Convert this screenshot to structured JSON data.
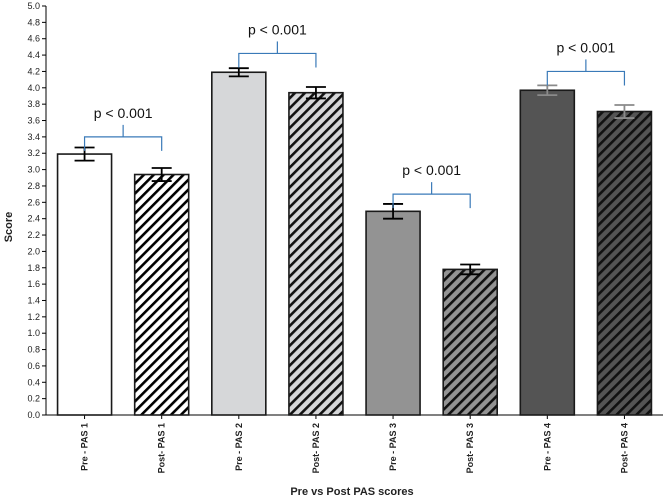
{
  "chart_data": {
    "type": "bar",
    "title": "",
    "xlabel": "Pre vs Post PAS scores",
    "ylabel": "Score",
    "ylim": [
      0,
      5.0
    ],
    "ytick_step": 0.2,
    "yticks": [
      "0.0",
      "0.2",
      "0.4",
      "0.6",
      "0.8",
      "1.0",
      "1.2",
      "1.4",
      "1.6",
      "1.8",
      "2.0",
      "2.2",
      "2.4",
      "2.6",
      "2.8",
      "3.0",
      "3.2",
      "3.4",
      "3.6",
      "3.8",
      "4.0",
      "4.2",
      "4.4",
      "4.6",
      "4.8",
      "5.0"
    ],
    "categories": [
      "Pre - PAS 1",
      "Post- PAS 1",
      "Pre - PAS 2",
      "Post- PAS 2",
      "Pre - PAS 3",
      "Post- PAS 3",
      "Pre - PAS 4",
      "Post- PAS 4"
    ],
    "values": [
      3.19,
      2.94,
      4.19,
      3.94,
      2.49,
      1.78,
      3.97,
      3.71
    ],
    "error": [
      0.08,
      0.08,
      0.05,
      0.07,
      0.09,
      0.06,
      0.06,
      0.08
    ],
    "fills": [
      "#ffffff",
      "#ffffff",
      "#d6d7d9",
      "#d6d7d9",
      "#939393",
      "#939393",
      "#545454",
      "#545454"
    ],
    "hatched": [
      false,
      true,
      false,
      true,
      false,
      true,
      false,
      true
    ],
    "error_colors": [
      "#000000",
      "#000000",
      "#000000",
      "#000000",
      "#000000",
      "#000000",
      "#8a8a8a",
      "#8a8a8a"
    ],
    "bracket_color": "#3a7ab8",
    "annotations": [
      {
        "pair": [
          0,
          1
        ],
        "text": "p < 0.001",
        "y": 3.4
      },
      {
        "pair": [
          2,
          3
        ],
        "text": "p < 0.001",
        "y": 4.42
      },
      {
        "pair": [
          4,
          5
        ],
        "text": "p < 0.001",
        "y": 2.7
      },
      {
        "pair": [
          6,
          7
        ],
        "text": "p < 0.001",
        "y": 4.2
      }
    ]
  }
}
